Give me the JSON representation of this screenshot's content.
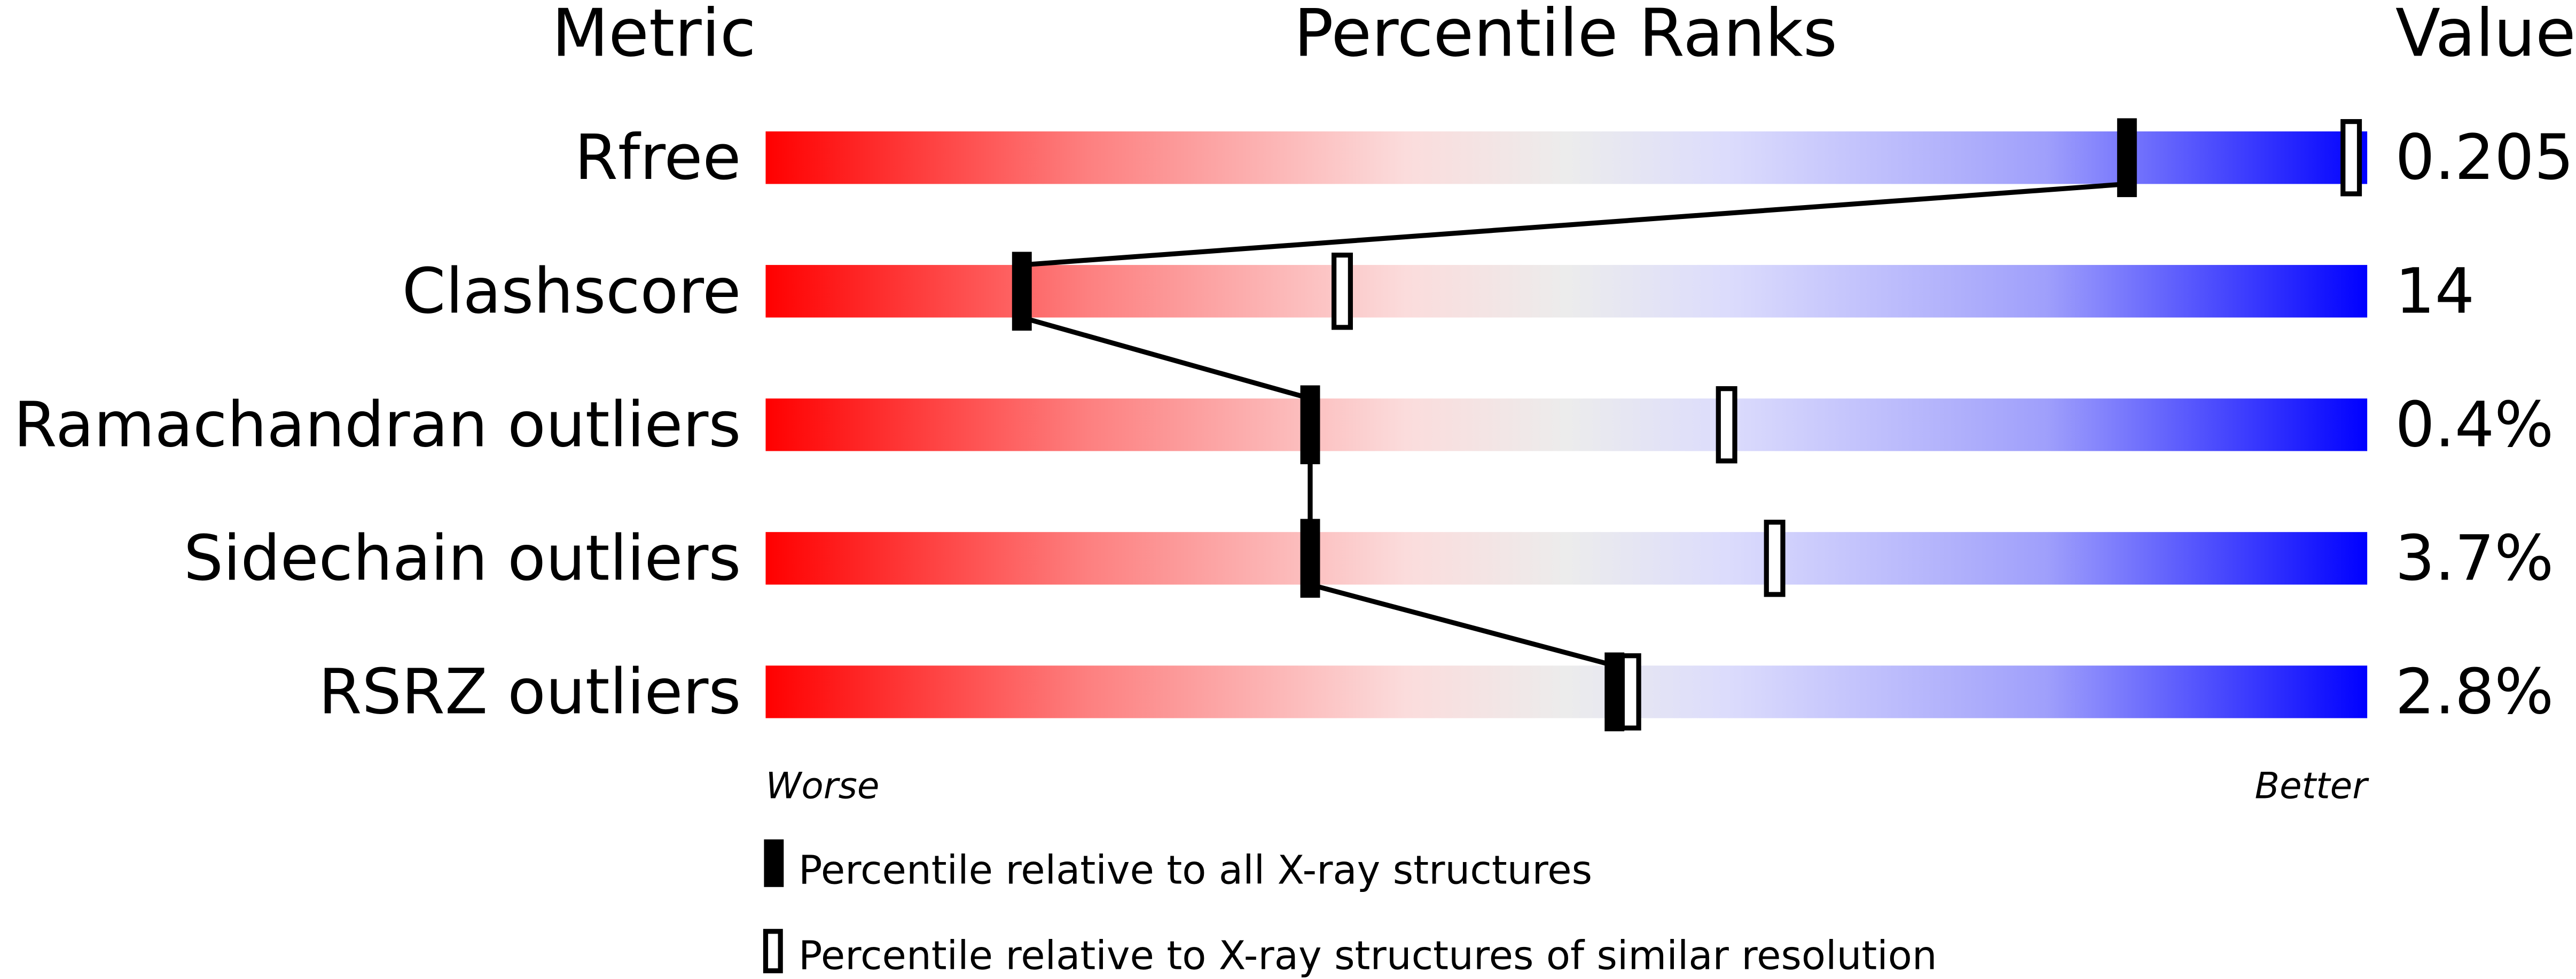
{
  "chart_data": {
    "type": "bar",
    "headers": {
      "metric": "Metric",
      "ranks": "Percentile Ranks",
      "value": "Value"
    },
    "categories": [
      "Rfree",
      "Clashscore",
      "Ramachandran outliers",
      "Sidechain outliers",
      "RSRZ outliers"
    ],
    "values_text": [
      "0.205",
      "14",
      "0.4%",
      "3.7%",
      "2.8%"
    ],
    "series": [
      {
        "name": "Percentile relative to all X-ray structures",
        "marker": "filled",
        "values": [
          85,
          16,
          34,
          34,
          53
        ]
      },
      {
        "name": "Percentile relative to X-ray structures of similar resolution",
        "marker": "open",
        "values": [
          99,
          36,
          60,
          63,
          54
        ]
      }
    ],
    "xlim": [
      0,
      100
    ],
    "axis_labels": {
      "worse": "Worse",
      "better": "Better"
    },
    "colors": {
      "worst": "#ff0000",
      "mid": "#ececec",
      "best": "#0000ff",
      "marker": "#000000"
    },
    "legend_position": "bottom"
  }
}
